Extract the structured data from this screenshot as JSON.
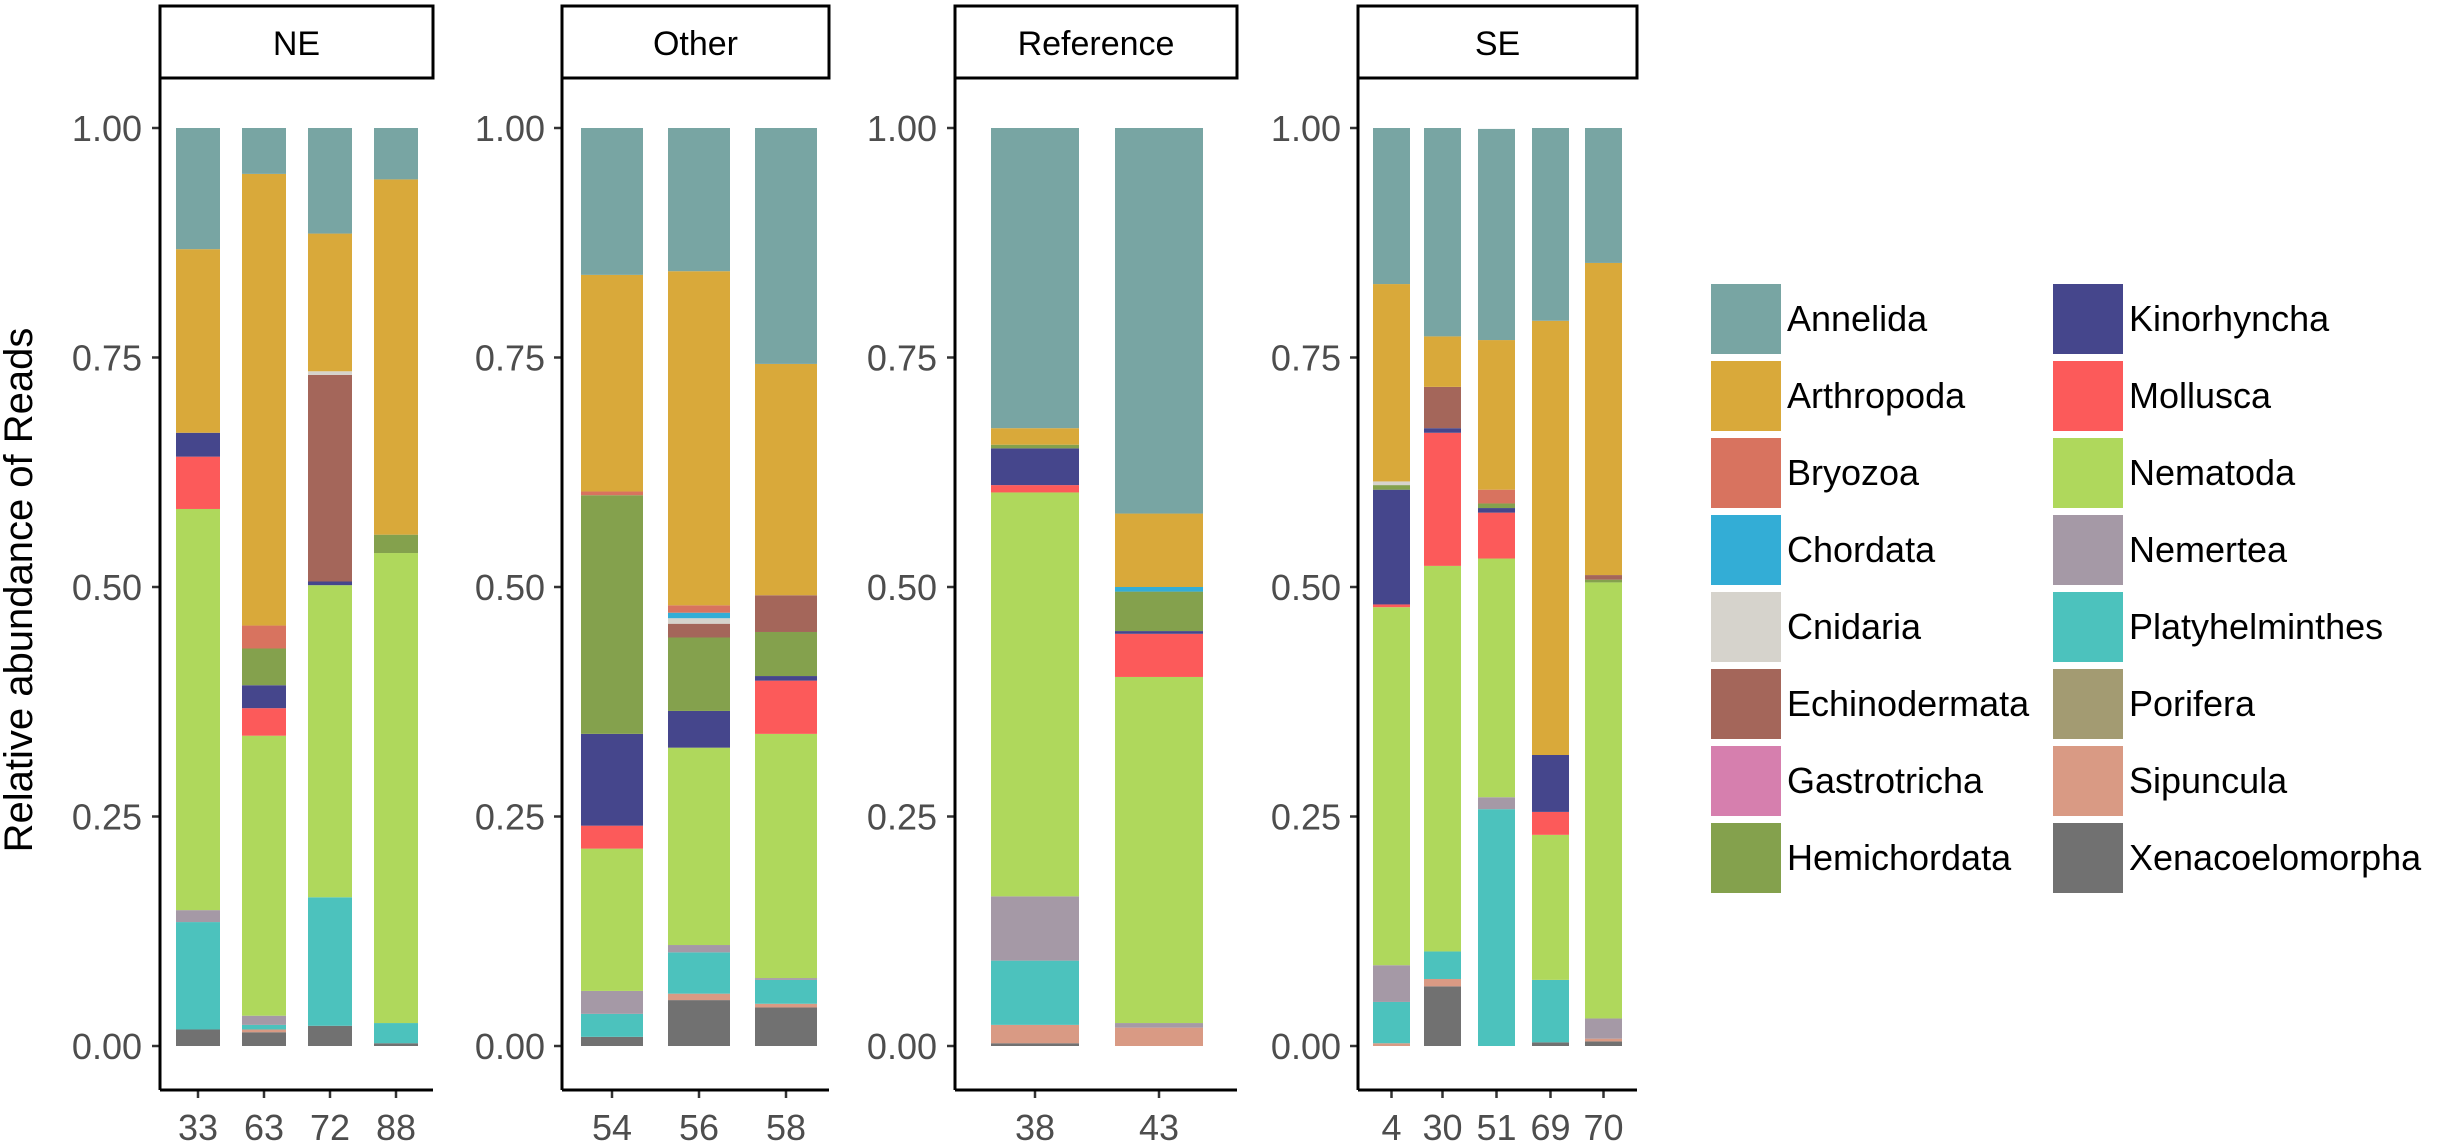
{
  "chart_data": {
    "type": "bar",
    "stacked": true,
    "ylabel": "Relative abundance of Reads",
    "xlabel": "",
    "ylim": [
      0,
      1
    ],
    "yticks": [
      "0.00",
      "0.25",
      "0.50",
      "0.75",
      "1.00"
    ],
    "legend_position": "right",
    "phyla": [
      "Annelida",
      "Arthropoda",
      "Bryozoa",
      "Chordata",
      "Cnidaria",
      "Echinodermata",
      "Gastrotricha",
      "Hemichordata",
      "Kinorhyncha",
      "Mollusca",
      "Nematoda",
      "Nemertea",
      "Platyhelminthes",
      "Porifera",
      "Sipuncula",
      "Xenacoelomorpha"
    ],
    "colors": {
      "Annelida": "#78a5a3",
      "Arthropoda": "#d9a93a",
      "Bryozoa": "#d8735f",
      "Chordata": "#33add6",
      "Cnidaria": "#d6d3cc",
      "Echinodermata": "#a4665a",
      "Gastrotricha": "#d67fae",
      "Hemichordata": "#84a14d",
      "Kinorhyncha": "#45468c",
      "Mollusca": "#fc5a5a",
      "Nematoda": "#afd85c",
      "Nemertea": "#a599a6",
      "Platyhelminthes": "#4cc2bd",
      "Porifera": "#a39b72",
      "Sipuncula": "#d99a84",
      "Xenacoelomorpha": "#717171"
    },
    "panels": [
      {
        "label": "NE",
        "samples": [
          {
            "id": "33",
            "values": {
              "Xenacoelomorpha": 0.018,
              "Sipuncula": 0,
              "Porifera": 0,
              "Platyhelminthes": 0.117,
              "Nemertea": 0.013,
              "Nematoda": 0.437,
              "Mollusca": 0.057,
              "Kinorhyncha": 0.026,
              "Hemichordata": 0,
              "Gastrotricha": 0,
              "Echinodermata": 0,
              "Cnidaria": 0,
              "Chordata": 0,
              "Bryozoa": 0,
              "Arthropoda": 0.2,
              "Annelida": 0.132
            }
          },
          {
            "id": "63",
            "values": {
              "Xenacoelomorpha": 0.015,
              "Sipuncula": 0.003,
              "Porifera": 0,
              "Platyhelminthes": 0.005,
              "Nemertea": 0.01,
              "Nematoda": 0.305,
              "Mollusca": 0.03,
              "Kinorhyncha": 0.025,
              "Hemichordata": 0.04,
              "Gastrotricha": 0,
              "Echinodermata": 0,
              "Cnidaria": 0,
              "Chordata": 0,
              "Bryozoa": 0.025,
              "Arthropoda": 0.492,
              "Annelida": 0.05
            }
          },
          {
            "id": "72",
            "values": {
              "Xenacoelomorpha": 0.022,
              "Sipuncula": 0,
              "Porifera": 0,
              "Platyhelminthes": 0.14,
              "Nemertea": 0,
              "Nematoda": 0.34,
              "Mollusca": 0,
              "Kinorhyncha": 0.004,
              "Hemichordata": 0,
              "Gastrotricha": 0,
              "Echinodermata": 0.225,
              "Cnidaria": 0.004,
              "Chordata": 0,
              "Bryozoa": 0,
              "Arthropoda": 0.15,
              "Annelida": 0.115
            }
          },
          {
            "id": "88",
            "values": {
              "Xenacoelomorpha": 0.003,
              "Sipuncula": 0,
              "Porifera": 0,
              "Platyhelminthes": 0.022,
              "Nemertea": 0,
              "Nematoda": 0.512,
              "Mollusca": 0,
              "Kinorhyncha": 0,
              "Hemichordata": 0.02,
              "Gastrotricha": 0,
              "Echinodermata": 0,
              "Cnidaria": 0,
              "Chordata": 0,
              "Bryozoa": 0,
              "Arthropoda": 0.387,
              "Annelida": 0.056
            }
          }
        ]
      },
      {
        "label": "Other",
        "samples": [
          {
            "id": "54",
            "values": {
              "Xenacoelomorpha": 0.01,
              "Sipuncula": 0,
              "Porifera": 0,
              "Platyhelminthes": 0.025,
              "Nemertea": 0.025,
              "Nematoda": 0.155,
              "Mollusca": 0.025,
              "Kinorhyncha": 0.1,
              "Hemichordata": 0.26,
              "Gastrotricha": 0,
              "Echinodermata": 0,
              "Cnidaria": 0,
              "Chordata": 0,
              "Bryozoa": 0.004,
              "Arthropoda": 0.236,
              "Annelida": 0.16
            }
          },
          {
            "id": "56",
            "values": {
              "Xenacoelomorpha": 0.05,
              "Sipuncula": 0.007,
              "Porifera": 0,
              "Platyhelminthes": 0.045,
              "Nemertea": 0.008,
              "Nematoda": 0.215,
              "Mollusca": 0,
              "Kinorhyncha": 0.04,
              "Hemichordata": 0.08,
              "Gastrotricha": 0,
              "Echinodermata": 0.015,
              "Cnidaria": 0.006,
              "Chordata": 0.006,
              "Bryozoa": 0.008,
              "Arthropoda": 0.364,
              "Annelida": 0.156
            }
          },
          {
            "id": "58",
            "values": {
              "Xenacoelomorpha": 0.042,
              "Sipuncula": 0.004,
              "Porifera": 0,
              "Platyhelminthes": 0.026,
              "Nemertea": 0.002,
              "Nematoda": 0.266,
              "Mollusca": 0.058,
              "Kinorhyncha": 0.005,
              "Hemichordata": 0.048,
              "Gastrotricha": 0,
              "Echinodermata": 0.04,
              "Cnidaria": 0,
              "Chordata": 0,
              "Bryozoa": 0,
              "Arthropoda": 0.252,
              "Annelida": 0.257
            }
          }
        ]
      },
      {
        "label": "Reference",
        "samples": [
          {
            "id": "38",
            "values": {
              "Xenacoelomorpha": 0.003,
              "Sipuncula": 0.02,
              "Porifera": 0,
              "Platyhelminthes": 0.07,
              "Nemertea": 0.07,
              "Nematoda": 0.44,
              "Mollusca": 0.008,
              "Kinorhyncha": 0.04,
              "Hemichordata": 0.004,
              "Gastrotricha": 0,
              "Echinodermata": 0,
              "Cnidaria": 0,
              "Chordata": 0,
              "Bryozoa": 0,
              "Arthropoda": 0.018,
              "Annelida": 0.327
            }
          },
          {
            "id": "43",
            "values": {
              "Xenacoelomorpha": 0,
              "Sipuncula": 0.02,
              "Porifera": 0,
              "Platyhelminthes": 0,
              "Nemertea": 0.005,
              "Nematoda": 0.377,
              "Mollusca": 0.047,
              "Kinorhyncha": 0.003,
              "Hemichordata": 0.043,
              "Gastrotricha": 0,
              "Echinodermata": 0,
              "Cnidaria": 0,
              "Chordata": 0.005,
              "Bryozoa": 0,
              "Arthropoda": 0.08,
              "Annelida": 0.42
            }
          }
        ]
      },
      {
        "label": "SE",
        "samples": [
          {
            "id": "4",
            "values": {
              "Xenacoelomorpha": 0,
              "Sipuncula": 0.003,
              "Porifera": 0,
              "Platyhelminthes": 0.045,
              "Nemertea": 0.04,
              "Nematoda": 0.39,
              "Mollusca": 0.003,
              "Kinorhyncha": 0.125,
              "Hemichordata": 0.005,
              "Gastrotricha": 0,
              "Echinodermata": 0,
              "Cnidaria": 0.004,
              "Chordata": 0,
              "Bryozoa": 0,
              "Arthropoda": 0.215,
              "Annelida": 0.17
            }
          },
          {
            "id": "30",
            "values": {
              "Xenacoelomorpha": 0.065,
              "Sipuncula": 0.008,
              "Porifera": 0,
              "Platyhelminthes": 0.03,
              "Nemertea": 0,
              "Nematoda": 0.42,
              "Mollusca": 0.145,
              "Kinorhyncha": 0.005,
              "Hemichordata": 0,
              "Gastrotricha": 0,
              "Echinodermata": 0.045,
              "Cnidaria": 0,
              "Chordata": 0,
              "Bryozoa": 0,
              "Arthropoda": 0.055,
              "Annelida": 0.227
            }
          },
          {
            "id": "51",
            "values": {
              "Xenacoelomorpha": 0,
              "Sipuncula": 0,
              "Porifera": 0,
              "Platyhelminthes": 0.258,
              "Nemertea": 0.013,
              "Nematoda": 0.26,
              "Mollusca": 0.05,
              "Kinorhyncha": 0.005,
              "Hemichordata": 0.005,
              "Gastrotricha": 0,
              "Echinodermata": 0,
              "Cnidaria": 0,
              "Chordata": 0,
              "Bryozoa": 0.015,
              "Arthropoda": 0.163,
              "Annelida": 0.23
            }
          },
          {
            "id": "69",
            "values": {
              "Xenacoelomorpha": 0.004,
              "Sipuncula": 0,
              "Porifera": 0,
              "Platyhelminthes": 0.068,
              "Nemertea": 0,
              "Nematoda": 0.158,
              "Mollusca": 0.025,
              "Kinorhyncha": 0.062,
              "Hemichordata": 0,
              "Gastrotricha": 0,
              "Echinodermata": 0,
              "Cnidaria": 0,
              "Chordata": 0,
              "Bryozoa": 0,
              "Arthropoda": 0.473,
              "Annelida": 0.21
            }
          },
          {
            "id": "70",
            "values": {
              "Xenacoelomorpha": 0.005,
              "Sipuncula": 0.003,
              "Porifera": 0,
              "Platyhelminthes": 0,
              "Nemertea": 0.022,
              "Nematoda": 0.475,
              "Mollusca": 0,
              "Kinorhyncha": 0,
              "Hemichordata": 0.003,
              "Gastrotricha": 0,
              "Echinodermata": 0.005,
              "Cnidaria": 0,
              "Chordata": 0,
              "Bryozoa": 0,
              "Arthropoda": 0.34,
              "Annelida": 0.147
            }
          }
        ]
      }
    ]
  }
}
